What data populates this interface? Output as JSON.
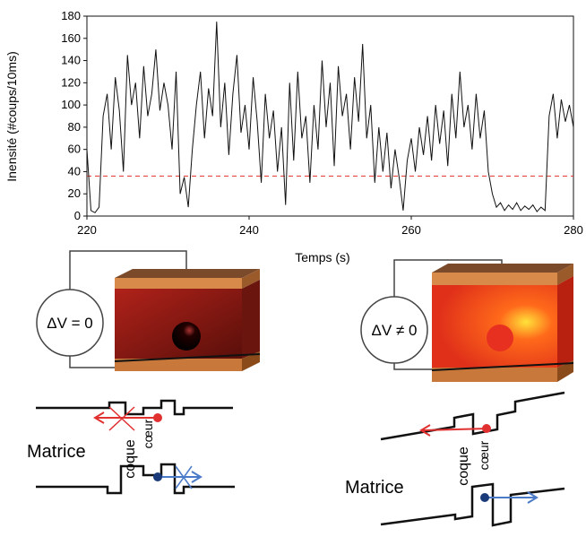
{
  "chart_data": {
    "type": "line",
    "y_label": "Inensité (#coups/10ms)",
    "x_label": "Temps (s)",
    "color": "#111111",
    "x": [
      220,
      220.5,
      221,
      221.5,
      222,
      222.5,
      223,
      223.5,
      224,
      224.5,
      225,
      225.5,
      226,
      226.5,
      227,
      227.5,
      228,
      228.5,
      229,
      229.5,
      230,
      230.5,
      231,
      231.5,
      232,
      232.5,
      233,
      233.5,
      234,
      234.5,
      235,
      235.5,
      236,
      236.5,
      237,
      237.5,
      238,
      238.5,
      239,
      239.5,
      240,
      240.5,
      241,
      241.5,
      242,
      242.5,
      243,
      243.5,
      244,
      244.5,
      245,
      245.5,
      246,
      246.5,
      247,
      247.5,
      248,
      248.5,
      249,
      249.5,
      250,
      250.5,
      251,
      251.5,
      252,
      252.5,
      253,
      253.5,
      254,
      254.5,
      255,
      255.5,
      256,
      256.5,
      257,
      257.5,
      258,
      258.5,
      259,
      259.5,
      260,
      260.5,
      261,
      261.5,
      262,
      262.5,
      263,
      263.5,
      264,
      264.5,
      265,
      265.5,
      266,
      266.5,
      267,
      267.5,
      268,
      268.5,
      269,
      269.5,
      270,
      270.5,
      271,
      271.5,
      272,
      272.5,
      273,
      273.5,
      274,
      274.5,
      275,
      275.5,
      276,
      276.5,
      277,
      277.5,
      278,
      278.5,
      279,
      279.5,
      280
    ],
    "values": [
      60,
      5,
      3,
      8,
      90,
      110,
      60,
      125,
      95,
      40,
      145,
      100,
      120,
      70,
      135,
      90,
      110,
      150,
      95,
      120,
      100,
      60,
      130,
      20,
      35,
      8,
      60,
      100,
      130,
      70,
      115,
      90,
      175,
      80,
      120,
      55,
      110,
      145,
      75,
      100,
      60,
      125,
      85,
      30,
      110,
      70,
      95,
      40,
      80,
      10,
      120,
      50,
      130,
      70,
      90,
      30,
      100,
      60,
      140,
      80,
      120,
      45,
      135,
      90,
      110,
      60,
      125,
      85,
      155,
      70,
      100,
      30,
      80,
      40,
      75,
      25,
      60,
      35,
      5,
      50,
      70,
      40,
      80,
      55,
      90,
      50,
      100,
      65,
      95,
      45,
      110,
      70,
      130,
      80,
      100,
      60,
      110,
      70,
      95,
      40,
      20,
      8,
      12,
      5,
      10,
      6,
      12,
      5,
      9,
      6,
      10,
      4,
      8,
      5,
      90,
      110,
      70,
      105,
      85,
      100,
      80
    ],
    "xlim": [
      220,
      280
    ],
    "xticks": [
      220,
      240,
      260,
      280
    ],
    "ylim": [
      0,
      180
    ],
    "yticks": [
      0,
      20,
      40,
      60,
      80,
      100,
      120,
      140,
      160,
      180
    ],
    "threshold": {
      "value": 36,
      "color": "#e0302a"
    }
  },
  "diagram": {
    "left": {
      "voltage": "ΔV = 0",
      "matrix": "Matrice",
      "shell": "coque",
      "core": "cœur"
    },
    "right": {
      "voltage": "ΔV ≠ 0",
      "matrix": "Matrice",
      "shell": "coque",
      "core": "cœur"
    }
  }
}
